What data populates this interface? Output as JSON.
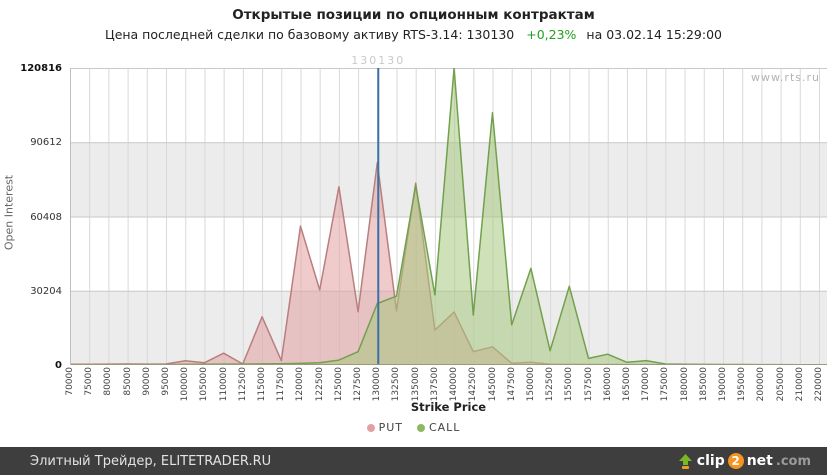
{
  "header": {
    "title": "Открытые позиции по опционным контрактам",
    "subtitle_main": "Цена последней сделки по базовому активу RTS-3.14: 130130",
    "subtitle_change": "+0,23%",
    "subtitle_date": "на 03.02.14 15:29:00"
  },
  "branding": {
    "watermark": "www.rts.ru"
  },
  "footer": {
    "credit": "Элитный Трейдер, ELITETRADER.RU",
    "logo_clip": "clip",
    "logo_2": "2",
    "logo_net": "net",
    "logo_com": ".com"
  },
  "chart_data": {
    "type": "area",
    "title": "Открытые позиции по опционным контрактам",
    "xlabel": "Strike Price",
    "ylabel": "Open Interest",
    "ylim": [
      0,
      120816
    ],
    "yticks": [
      0,
      30204,
      60408,
      90612,
      120816
    ],
    "grid": true,
    "band_color": "#ececec",
    "legend_position": "bottom",
    "categories": [
      70000,
      75000,
      80000,
      85000,
      90000,
      95000,
      100000,
      105000,
      110000,
      112500,
      115000,
      117500,
      120000,
      122500,
      125000,
      127500,
      130000,
      132500,
      135000,
      137500,
      140000,
      142500,
      145000,
      147500,
      150000,
      152500,
      155000,
      157500,
      160000,
      165000,
      170000,
      175000,
      180000,
      185000,
      190000,
      195000,
      200000,
      205000,
      210000,
      220000
    ],
    "series": [
      {
        "name": "PUT",
        "color": "#bb7e7e",
        "fill": "rgba(226,160,160,0.55)",
        "values": [
          300,
          300,
          350,
          400,
          350,
          400,
          1750,
          900,
          4800,
          400,
          19600,
          1800,
          56500,
          30500,
          72500,
          21700,
          82300,
          22000,
          74000,
          14200,
          21500,
          5400,
          7400,
          700,
          1100,
          300,
          250,
          200,
          200,
          150,
          150,
          100,
          100,
          100,
          100,
          100,
          100,
          100,
          100,
          100
        ]
      },
      {
        "name": "CALL",
        "color": "#72a04e",
        "fill": "rgba(168,201,126,0.55)",
        "values": [
          100,
          100,
          100,
          150,
          150,
          200,
          250,
          300,
          350,
          350,
          450,
          500,
          650,
          900,
          2000,
          5400,
          25000,
          28000,
          73000,
          28500,
          120816,
          20300,
          102600,
          16300,
          39300,
          5800,
          32000,
          2700,
          4400,
          1100,
          1800,
          400,
          300,
          250,
          200,
          200,
          150,
          150,
          100,
          100
        ]
      }
    ],
    "marker_line": {
      "value": 130130,
      "label": "130130",
      "color": "#3a6fa8"
    }
  }
}
